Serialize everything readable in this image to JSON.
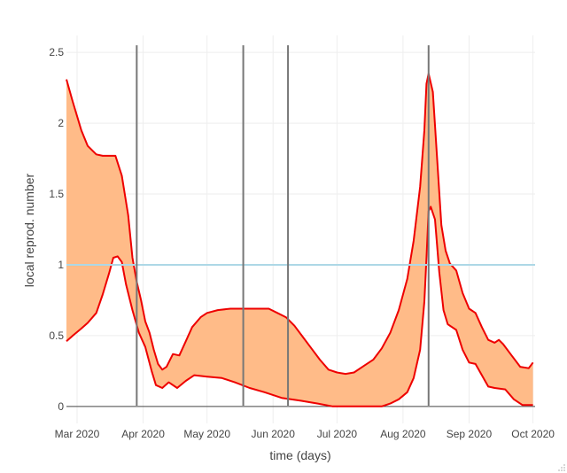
{
  "chart_data": {
    "type": "area",
    "title": "",
    "xlabel": "time (days)",
    "ylabel": "local reprod. number",
    "x_ticks": [
      {
        "date": "2020-03-01",
        "label": "Mar 2020"
      },
      {
        "date": "2020-04-01",
        "label": "Apr 2020"
      },
      {
        "date": "2020-05-01",
        "label": "May 2020"
      },
      {
        "date": "2020-06-01",
        "label": "Jun 2020"
      },
      {
        "date": "2020-07-01",
        "label": "Jul 2020"
      },
      {
        "date": "2020-08-01",
        "label": "Aug 2020"
      },
      {
        "date": "2020-09-01",
        "label": "Sep 2020"
      },
      {
        "date": "2020-10-01",
        "label": "Oct 2020"
      }
    ],
    "y_ticks": [
      {
        "value": 0,
        "label": "0"
      },
      {
        "value": 0.5,
        "label": "0.5"
      },
      {
        "value": 1,
        "label": "1"
      },
      {
        "value": 1.5,
        "label": "1.5"
      },
      {
        "value": 2,
        "label": "2"
      },
      {
        "value": 2.5,
        "label": "2.5"
      }
    ],
    "xlim": [
      "2020-02-25",
      "2020-10-02"
    ],
    "ylim": [
      -0.12,
      2.62
    ],
    "grid": true,
    "reference_line": {
      "value": 1,
      "color": "#add8e6"
    },
    "vertical_lines": [
      "2020-03-29",
      "2020-05-18",
      "2020-06-08",
      "2020-08-13"
    ],
    "band": {
      "fill_color": "#ffbb88",
      "line_color": "#ee0000",
      "upper": [
        [
          "2020-02-25",
          2.31
        ],
        [
          "2020-02-28",
          2.15
        ],
        [
          "2020-03-03",
          1.95
        ],
        [
          "2020-03-06",
          1.84
        ],
        [
          "2020-03-10",
          1.78
        ],
        [
          "2020-03-13",
          1.77
        ],
        [
          "2020-03-19",
          1.77
        ],
        [
          "2020-03-22",
          1.63
        ],
        [
          "2020-03-25",
          1.35
        ],
        [
          "2020-03-27",
          1.05
        ],
        [
          "2020-03-29",
          0.88
        ],
        [
          "2020-03-31",
          0.75
        ],
        [
          "2020-04-02",
          0.6
        ],
        [
          "2020-04-04",
          0.52
        ],
        [
          "2020-04-06",
          0.4
        ],
        [
          "2020-04-08",
          0.3
        ],
        [
          "2020-04-10",
          0.26
        ],
        [
          "2020-04-12",
          0.28
        ],
        [
          "2020-04-15",
          0.37
        ],
        [
          "2020-04-18",
          0.36
        ],
        [
          "2020-04-21",
          0.46
        ],
        [
          "2020-04-24",
          0.56
        ],
        [
          "2020-04-28",
          0.63
        ],
        [
          "2020-05-01",
          0.66
        ],
        [
          "2020-05-06",
          0.68
        ],
        [
          "2020-05-12",
          0.69
        ],
        [
          "2020-05-20",
          0.69
        ],
        [
          "2020-05-30",
          0.69
        ],
        [
          "2020-06-03",
          0.66
        ],
        [
          "2020-06-07",
          0.63
        ],
        [
          "2020-06-11",
          0.57
        ],
        [
          "2020-06-15",
          0.49
        ],
        [
          "2020-06-19",
          0.41
        ],
        [
          "2020-06-23",
          0.33
        ],
        [
          "2020-06-27",
          0.26
        ],
        [
          "2020-07-01",
          0.24
        ],
        [
          "2020-07-05",
          0.23
        ],
        [
          "2020-07-09",
          0.24
        ],
        [
          "2020-07-13",
          0.28
        ],
        [
          "2020-07-18",
          0.33
        ],
        [
          "2020-07-22",
          0.41
        ],
        [
          "2020-07-26",
          0.52
        ],
        [
          "2020-07-30",
          0.68
        ],
        [
          "2020-08-03",
          0.9
        ],
        [
          "2020-08-06",
          1.17
        ],
        [
          "2020-08-09",
          1.55
        ],
        [
          "2020-08-11",
          1.95
        ],
        [
          "2020-08-12",
          2.28
        ],
        [
          "2020-08-13",
          2.35
        ],
        [
          "2020-08-15",
          2.22
        ],
        [
          "2020-08-17",
          1.75
        ],
        [
          "2020-08-19",
          1.28
        ],
        [
          "2020-08-21",
          1.1
        ],
        [
          "2020-08-23",
          1.01
        ],
        [
          "2020-08-26",
          0.96
        ],
        [
          "2020-08-29",
          0.8
        ],
        [
          "2020-09-01",
          0.69
        ],
        [
          "2020-09-04",
          0.66
        ],
        [
          "2020-09-07",
          0.56
        ],
        [
          "2020-09-10",
          0.47
        ],
        [
          "2020-09-13",
          0.45
        ],
        [
          "2020-09-15",
          0.47
        ],
        [
          "2020-09-17",
          0.44
        ],
        [
          "2020-09-21",
          0.36
        ],
        [
          "2020-09-25",
          0.28
        ],
        [
          "2020-09-29",
          0.27
        ],
        [
          "2020-10-01",
          0.31
        ]
      ],
      "lower": [
        [
          "2020-02-25",
          0.46
        ],
        [
          "2020-02-28",
          0.5
        ],
        [
          "2020-03-03",
          0.55
        ],
        [
          "2020-03-06",
          0.59
        ],
        [
          "2020-03-10",
          0.66
        ],
        [
          "2020-03-13",
          0.79
        ],
        [
          "2020-03-16",
          0.94
        ],
        [
          "2020-03-18",
          1.05
        ],
        [
          "2020-03-20",
          1.06
        ],
        [
          "2020-03-22",
          1.02
        ],
        [
          "2020-03-24",
          0.86
        ],
        [
          "2020-03-27",
          0.68
        ],
        [
          "2020-03-30",
          0.52
        ],
        [
          "2020-04-02",
          0.42
        ],
        [
          "2020-04-05",
          0.25
        ],
        [
          "2020-04-07",
          0.15
        ],
        [
          "2020-04-10",
          0.13
        ],
        [
          "2020-04-13",
          0.17
        ],
        [
          "2020-04-17",
          0.13
        ],
        [
          "2020-04-21",
          0.18
        ],
        [
          "2020-04-25",
          0.22
        ],
        [
          "2020-05-01",
          0.21
        ],
        [
          "2020-05-08",
          0.2
        ],
        [
          "2020-05-14",
          0.17
        ],
        [
          "2020-05-21",
          0.13
        ],
        [
          "2020-05-28",
          0.1
        ],
        [
          "2020-06-05",
          0.06
        ],
        [
          "2020-06-14",
          0.04
        ],
        [
          "2020-06-22",
          0.02
        ],
        [
          "2020-06-29",
          0.0
        ],
        [
          "2020-07-22",
          0.0
        ],
        [
          "2020-07-26",
          0.02
        ],
        [
          "2020-07-30",
          0.05
        ],
        [
          "2020-08-03",
          0.1
        ],
        [
          "2020-08-06",
          0.2
        ],
        [
          "2020-08-09",
          0.4
        ],
        [
          "2020-08-11",
          0.74
        ],
        [
          "2020-08-12",
          1.05
        ],
        [
          "2020-08-13",
          1.38
        ],
        [
          "2020-08-14",
          1.41
        ],
        [
          "2020-08-16",
          1.32
        ],
        [
          "2020-08-18",
          0.95
        ],
        [
          "2020-08-20",
          0.68
        ],
        [
          "2020-08-22",
          0.58
        ],
        [
          "2020-08-26",
          0.54
        ],
        [
          "2020-08-29",
          0.4
        ],
        [
          "2020-09-01",
          0.31
        ],
        [
          "2020-09-04",
          0.3
        ],
        [
          "2020-09-07",
          0.22
        ],
        [
          "2020-09-10",
          0.14
        ],
        [
          "2020-09-13",
          0.13
        ],
        [
          "2020-09-18",
          0.12
        ],
        [
          "2020-09-22",
          0.05
        ],
        [
          "2020-09-26",
          0.01
        ],
        [
          "2020-10-01",
          0.01
        ]
      ]
    },
    "colors": {
      "vertical_line": "#777777",
      "grid": "#eeeeee",
      "zero_line": "#444444",
      "tick_text": "#444444"
    }
  }
}
